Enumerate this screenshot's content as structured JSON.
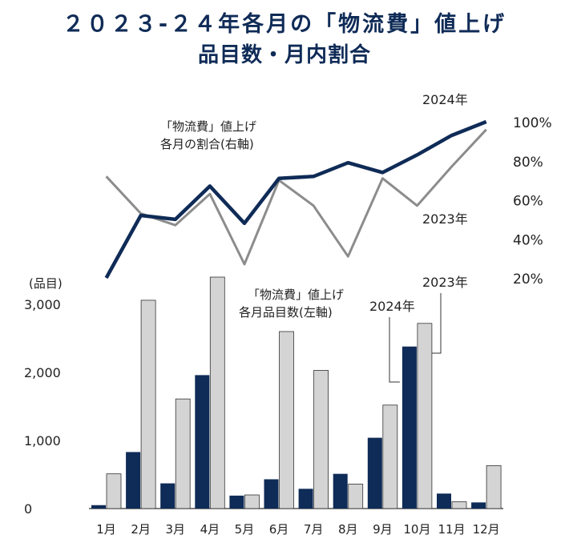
{
  "title_line1": "２０２３-２４年各月の「物流費」値上げ",
  "title_line2": "品目数・月内割合",
  "colors": {
    "series_2024": "#0f2b57",
    "series_2023_line": "#8c8c8c",
    "series_2023_bar": "#d4d4d4",
    "text": "#222222"
  },
  "chart_data": [
    {
      "type": "line",
      "title": "",
      "annotation": [
        "「物流費」値上げ",
        "各月の割合(右軸)"
      ],
      "categories": [
        "1月",
        "2月",
        "3月",
        "4月",
        "5月",
        "6月",
        "7月",
        "8月",
        "9月",
        "10月",
        "11月",
        "12月"
      ],
      "y_ticks": [
        "20%",
        "40%",
        "60%",
        "80%",
        "100%"
      ],
      "ylim": [
        20,
        100
      ],
      "axis_side": "right",
      "series": [
        {
          "name": "2024年",
          "values": [
            20,
            52,
            50,
            67,
            48,
            71,
            72,
            79,
            74,
            83,
            93,
            100
          ]
        },
        {
          "name": "2023年",
          "values": [
            72,
            53,
            47,
            63,
            27,
            70,
            57,
            31,
            71,
            57,
            77,
            96
          ]
        }
      ]
    },
    {
      "type": "bar",
      "title": "",
      "annotation": [
        "「物流費」値上げ",
        "各月品目数(左軸)"
      ],
      "unit_label": "(品目)",
      "categories": [
        "1月",
        "2月",
        "3月",
        "4月",
        "5月",
        "6月",
        "7月",
        "8月",
        "9月",
        "10月",
        "11月",
        "12月"
      ],
      "y_ticks": [
        "0",
        "1,000",
        "2,000",
        "3,000"
      ],
      "ylim": [
        0,
        3000
      ],
      "series": [
        {
          "name": "2024年",
          "values": [
            50,
            830,
            370,
            1960,
            190,
            430,
            290,
            510,
            1040,
            2380,
            220,
            90
          ]
        },
        {
          "name": "2023年",
          "values": [
            510,
            3060,
            1610,
            3400,
            200,
            2600,
            2030,
            360,
            1520,
            2720,
            100,
            630
          ]
        }
      ]
    }
  ]
}
